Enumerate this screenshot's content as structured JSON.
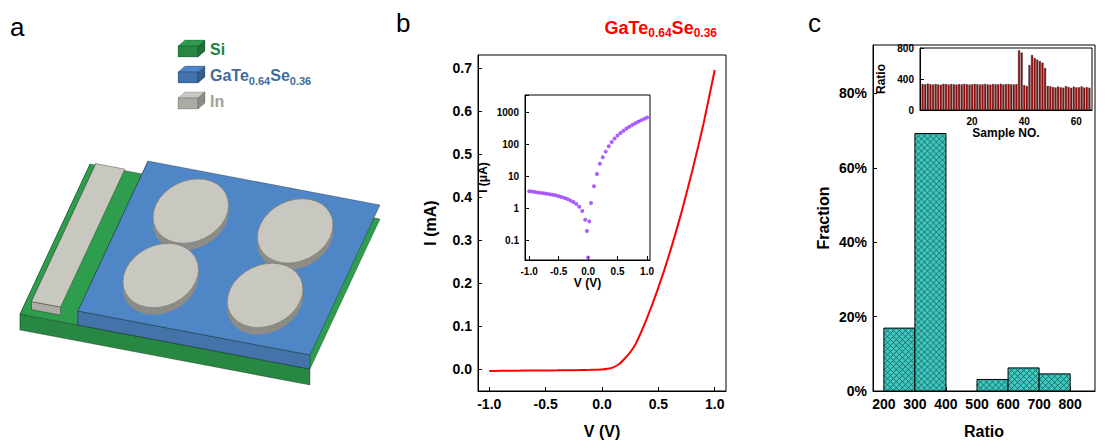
{
  "panel_labels": [
    "a",
    "b",
    "c"
  ],
  "schematic": {
    "legend": [
      {
        "label": "Si",
        "color": "#2e9e4e"
      },
      {
        "label": "GaTe0.64Se0.36",
        "color": "#4f86c6"
      },
      {
        "label": "In",
        "color": "#c9c8c0"
      }
    ]
  },
  "chart_data": [
    {
      "type": "line",
      "title": "GaTe0.64Se0.36",
      "color": "#ff0000",
      "x_label": "V (V)",
      "y_label": "I (mA)",
      "x": [
        -1,
        -0.9,
        -0.8,
        -0.7,
        -0.6,
        -0.5,
        -0.4,
        -0.3,
        -0.2,
        -0.1,
        0,
        0.05,
        0.1,
        0.15,
        0.2,
        0.25,
        0.3,
        0.4,
        0.5,
        0.6,
        0.7,
        0.8,
        0.9,
        1
      ],
      "values": [
        -0.0035,
        -0.0032,
        -0.003,
        -0.0027,
        -0.0025,
        -0.0023,
        -0.0021,
        -0.0018,
        -0.0014,
        -0.0009,
        0,
        0.0015,
        0.005,
        0.012,
        0.025,
        0.04,
        0.06,
        0.12,
        0.19,
        0.27,
        0.36,
        0.46,
        0.57,
        0.695
      ],
      "xlim": [
        -1.1,
        1.1
      ],
      "xticks": [
        {
          "value": -1,
          "label": "-1.0"
        },
        -0.5,
        {
          "value": 0,
          "label": "0.0"
        },
        0.5,
        {
          "value": 1,
          "label": "1.0"
        }
      ],
      "ylim": [
        -0.05,
        0.73
      ],
      "yticks": [
        {
          "value": 0,
          "label": "0.0"
        },
        0.1,
        0.2,
        0.3,
        0.4,
        0.5,
        0.6,
        0.7
      ],
      "grid": false
    },
    {
      "type": "scatter",
      "color": "#9933ff",
      "marker": "circle",
      "log": "y",
      "x_label": "V (V)",
      "y_label": "I (μA)",
      "x": [
        -1,
        -0.95,
        -0.9,
        -0.85,
        -0.8,
        -0.75,
        -0.7,
        -0.65,
        -0.6,
        -0.55,
        -0.5,
        -0.45,
        -0.4,
        -0.35,
        -0.3,
        -0.25,
        -0.2,
        -0.15,
        -0.1,
        -0.05,
        -0.02,
        0,
        0.02,
        0.05,
        0.1,
        0.15,
        0.2,
        0.25,
        0.3,
        0.35,
        0.4,
        0.45,
        0.5,
        0.55,
        0.6,
        0.65,
        0.7,
        0.75,
        0.8,
        0.85,
        0.9,
        0.95,
        1
      ],
      "values": [
        3.5,
        3.4,
        3.3,
        3.2,
        3.1,
        3.0,
        2.9,
        2.8,
        2.7,
        2.6,
        2.45,
        2.3,
        2.15,
        2.0,
        1.8,
        1.6,
        1.4,
        1.15,
        0.85,
        0.45,
        0.2,
        0.03,
        0.4,
        1.5,
        5,
        12,
        25,
        40,
        60,
        88,
        120,
        155,
        190,
        230,
        270,
        315,
        360,
        410,
        460,
        515,
        570,
        630,
        695
      ],
      "xlim": [
        -1.07,
        1.05
      ],
      "xticks": [
        {
          "value": -1,
          "label": "-1.0"
        },
        -0.5,
        {
          "value": 0,
          "label": "0.0"
        },
        0.5,
        {
          "value": 1,
          "label": "1.0"
        }
      ],
      "ylim": [
        0.025,
        3500
      ],
      "yticks": [
        0.1,
        1,
        10,
        100,
        1000
      ],
      "grid": false
    },
    {
      "type": "histogram",
      "color": "#3cc8c0",
      "x_label": "Ratio",
      "y_label": "Fraction",
      "bins": [
        200,
        300,
        400,
        500,
        600,
        700,
        800
      ],
      "values": [
        16.9,
        69.2,
        0,
        3.1,
        6.2,
        4.6
      ],
      "xlim": [
        165,
        880
      ],
      "xticks": [
        200,
        300,
        400,
        500,
        600,
        700,
        800
      ],
      "ylim": [
        0,
        93
      ],
      "yticks": [
        {
          "value": 0,
          "label": "0%"
        },
        {
          "value": 20,
          "label": "20%"
        },
        {
          "value": 40,
          "label": "40%"
        },
        {
          "value": 60,
          "label": "60%"
        },
        {
          "value": 80,
          "label": "80%"
        }
      ],
      "grid": false
    },
    {
      "type": "bar",
      "color": "#a01010",
      "x_label": "Sample NO.",
      "y_label": "Ratio",
      "x": [
        1,
        2,
        3,
        4,
        5,
        6,
        7,
        8,
        9,
        10,
        11,
        12,
        13,
        14,
        15,
        16,
        17,
        18,
        19,
        20,
        21,
        22,
        23,
        24,
        25,
        26,
        27,
        28,
        29,
        30,
        31,
        32,
        33,
        34,
        35,
        36,
        37,
        38,
        39,
        40,
        41,
        42,
        43,
        44,
        45,
        46,
        47,
        48,
        49,
        50,
        51,
        52,
        53,
        54,
        55,
        56,
        57,
        58,
        59,
        60,
        61,
        62,
        63,
        64,
        65
      ],
      "values": [
        335,
        330,
        340,
        332,
        328,
        336,
        330,
        325,
        338,
        333,
        329,
        335,
        331,
        327,
        334,
        330,
        336,
        332,
        328,
        330,
        335,
        333,
        329,
        331,
        336,
        330,
        327,
        334,
        332,
        330,
        338,
        329,
        333,
        335,
        331,
        330,
        334,
        770,
        740,
        320,
        310,
        580,
        710,
        670,
        650,
        630,
        610,
        540,
        310,
        305,
        295,
        290,
        302,
        292,
        288,
        308,
        296,
        285,
        301,
        291,
        293,
        304,
        289,
        294,
        287
      ],
      "xlim": [
        0,
        66
      ],
      "xticks": [
        20,
        40,
        60
      ],
      "ylim": [
        0,
        800
      ],
      "yticks": [
        0,
        400,
        800
      ],
      "grid": false
    }
  ]
}
